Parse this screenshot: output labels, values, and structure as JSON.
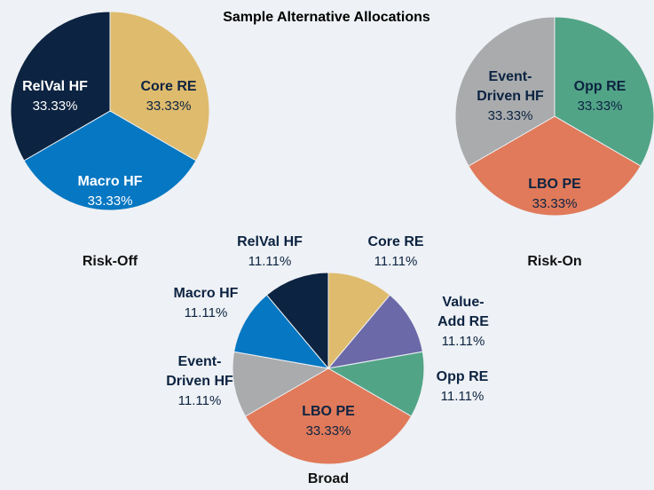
{
  "title": "Sample Alternative Allocations",
  "chart_data": [
    {
      "type": "pie",
      "title": "Risk-Off",
      "categories": [
        "Core RE",
        "Macro HF",
        "RelVal HF"
      ],
      "values": [
        33.33,
        33.33,
        33.33
      ],
      "value_labels": [
        "33.33%",
        "33.33%",
        "33.33%"
      ],
      "colors": [
        "#dfbb6d",
        "#0677c2",
        "#0c2341"
      ]
    },
    {
      "type": "pie",
      "title": "Risk-On",
      "categories": [
        "Opp RE",
        "LBO PE",
        "Event-Driven HF"
      ],
      "values": [
        33.33,
        33.33,
        33.33
      ],
      "value_labels": [
        "33.33%",
        "33.33%",
        "33.33%"
      ],
      "colors": [
        "#52a487",
        "#e07a5a",
        "#a9abad"
      ]
    },
    {
      "type": "pie",
      "title": "Broad",
      "categories": [
        "Core RE",
        "Value-Add RE",
        "Opp RE",
        "LBO PE",
        "Event-Driven HF",
        "Macro HF",
        "RelVal HF"
      ],
      "values": [
        11.11,
        11.11,
        11.11,
        33.33,
        11.11,
        11.11,
        11.11
      ],
      "value_labels": [
        "11.11%",
        "11.11%",
        "11.11%",
        "33.33%",
        "11.11%",
        "11.11%",
        "11.11%"
      ],
      "colors": [
        "#dfbb6d",
        "#6b69a8",
        "#52a487",
        "#e07a5a",
        "#a9abad",
        "#0677c2",
        "#0c2341"
      ]
    }
  ]
}
